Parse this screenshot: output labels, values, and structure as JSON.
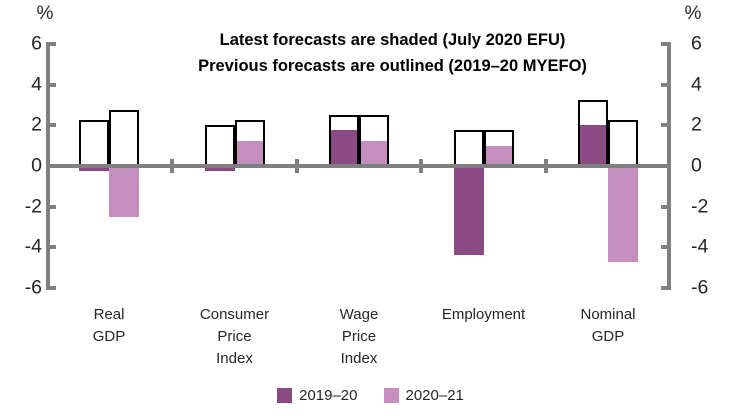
{
  "title": {
    "line1": "Latest forecasts are shaded (July 2020 EFU)",
    "line2": "Previous forecasts are outlined (2019–20 MYEFO)"
  },
  "axes": {
    "left": {
      "unit_label": "%",
      "ticks": [
        6,
        4,
        2,
        0,
        -2,
        -4,
        -6
      ]
    },
    "right": {
      "unit_label": "%",
      "ticks": [
        6,
        4,
        2,
        0,
        -2,
        -4,
        -6
      ]
    }
  },
  "legend": {
    "items": [
      {
        "label": "2019–20",
        "color": "#8B4A84"
      },
      {
        "label": "2020–21",
        "color": "#C48EBF"
      }
    ]
  },
  "colors": {
    "dark_purple": "#8B4A84",
    "light_purple": "#C48EBF",
    "axis_gray": "#808080",
    "outline_black": "#000000",
    "background": "#FFFFFF"
  },
  "chart_data": {
    "type": "bar",
    "categories": [
      "Real GDP",
      "Consumer Price Index",
      "Wage Price Index",
      "Employment",
      "Nominal GDP"
    ],
    "series": [
      {
        "name": "2019–20 previous forecast (outlined, 2019–20 MYEFO)",
        "key": "outlined-2019-20",
        "style": "outlined",
        "column": 1,
        "values": [
          2.25,
          2.0,
          2.5,
          1.75,
          3.25
        ]
      },
      {
        "name": "2020–21 previous forecast (outlined, 2019–20 MYEFO)",
        "key": "outlined-2020-21",
        "style": "outlined",
        "column": 2,
        "values": [
          2.75,
          2.25,
          2.5,
          1.75,
          2.25
        ]
      },
      {
        "name": "2019–20 latest forecast (shaded, July 2020 EFU)",
        "key": "shaded-2019-20",
        "style": "shaded",
        "column": 1,
        "color": "#8B4A84",
        "values": [
          -0.25,
          -0.25,
          1.75,
          -4.4,
          2.0
        ]
      },
      {
        "name": "2020–21 latest forecast (shaded, July 2020 EFU)",
        "key": "shaded-2020-21",
        "style": "shaded",
        "column": 2,
        "color": "#C48EBF",
        "values": [
          -2.5,
          1.25,
          1.25,
          1.0,
          -4.75
        ]
      }
    ],
    "ylim": [
      -6,
      6
    ],
    "yticks": [
      6,
      4,
      2,
      0,
      -2,
      -4,
      -6
    ],
    "y_unit": "%",
    "grid": false,
    "legend_position": "bottom"
  }
}
